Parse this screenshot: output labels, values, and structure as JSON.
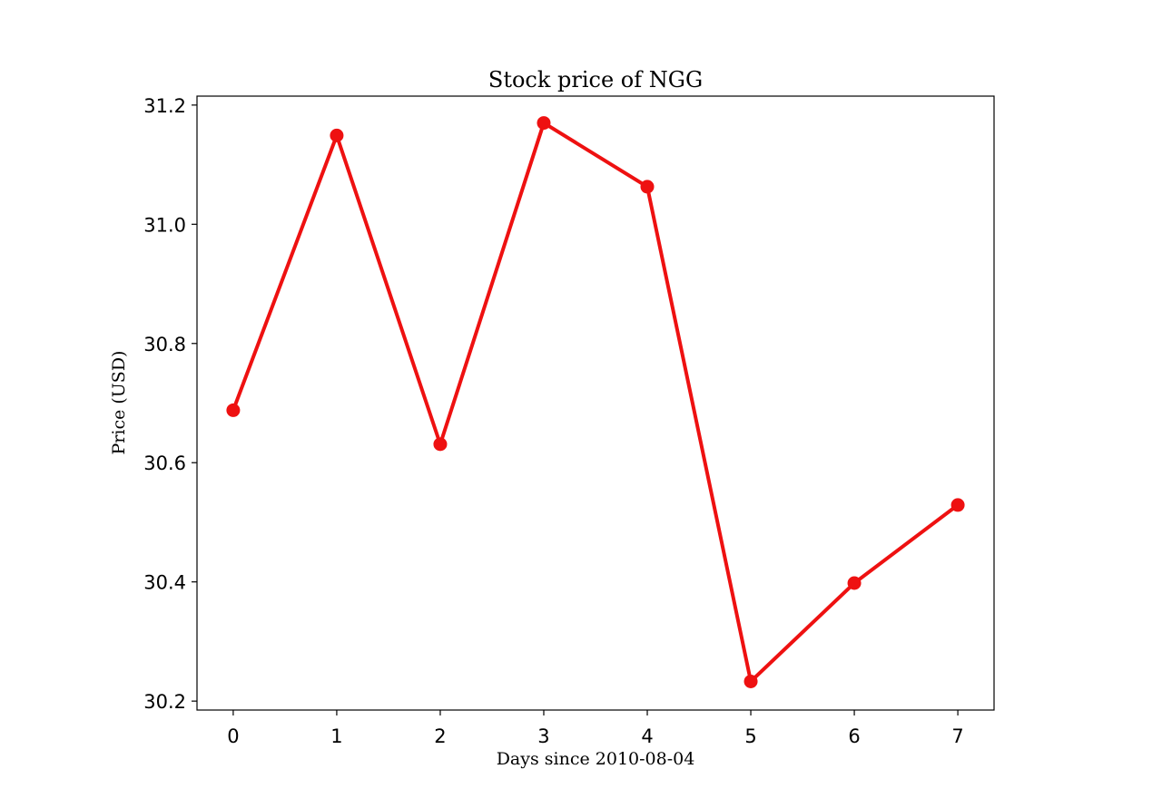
{
  "chart_data": {
    "type": "line",
    "title": "Stock price of NGG",
    "xlabel": "Days since 2010-08-04",
    "ylabel": "Price (USD)",
    "x": [
      0,
      1,
      2,
      3,
      4,
      5,
      6,
      7
    ],
    "x_tick_labels": [
      "0",
      "1",
      "2",
      "3",
      "4",
      "5",
      "6",
      "7"
    ],
    "y_ticks": [
      30.2,
      30.4,
      30.6,
      30.8,
      31.0,
      31.2
    ],
    "y_tick_labels": [
      "30.2",
      "30.4",
      "30.6",
      "30.8",
      "31.0",
      "31.2"
    ],
    "xlim": [
      -0.35,
      7.35
    ],
    "ylim": [
      30.185,
      31.215
    ],
    "series": [
      {
        "values": [
          30.688,
          31.149,
          30.631,
          31.17,
          31.063,
          30.233,
          30.398,
          30.529
        ],
        "color": "#ee1111",
        "marker": "circle"
      }
    ],
    "grid": false,
    "legend": "none"
  }
}
